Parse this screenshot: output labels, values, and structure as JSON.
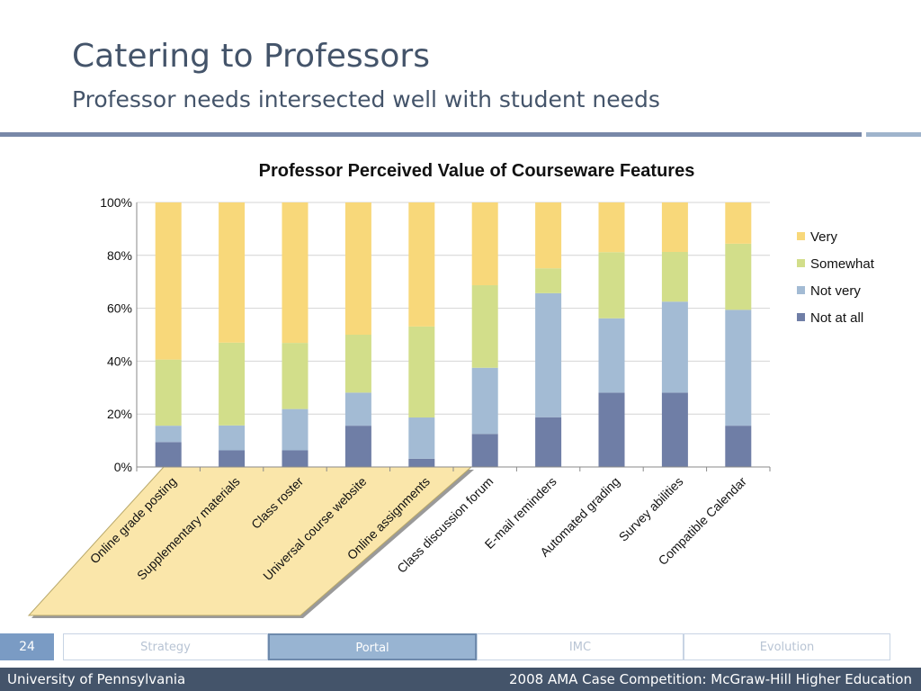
{
  "slide": {
    "title": "Catering to Professors",
    "subtitle": "Professor needs intersected well with student needs",
    "page_number": "24",
    "footer_left": "University of Pennsylvania",
    "footer_right": "2008 AMA Case Competition: McGraw-Hill Higher Education"
  },
  "nav": {
    "tabs": [
      {
        "label": "Strategy",
        "active": false
      },
      {
        "label": "Portal",
        "active": true
      },
      {
        "label": "IMC",
        "active": false
      },
      {
        "label": "Evolution",
        "active": false
      }
    ]
  },
  "colors": {
    "very": "#f8d87a",
    "somewhat": "#d2de8a",
    "not_very": "#a3bbd4",
    "not_at_all": "#6f7ea6",
    "highlight": "#fae6aa",
    "title_text": "#44546a"
  },
  "chart_data": {
    "type": "bar",
    "stacked": true,
    "title": "Professor Perceived Value of Courseware Features",
    "categories": [
      "Online grade posting",
      "Supplementary materials",
      "Class roster",
      "Universal course website",
      "Online assignments",
      "Class discussion forum",
      "E-mail reminders",
      "Automated grading",
      "Survey abilities",
      "Compatible Calendar"
    ],
    "series": [
      {
        "name": "Not at all",
        "values": [
          9.4,
          6.3,
          6.3,
          15.6,
          3.1,
          12.5,
          18.8,
          28.1,
          28.1,
          15.6
        ]
      },
      {
        "name": "Not very",
        "values": [
          6.2,
          9.4,
          15.6,
          12.5,
          15.6,
          25.0,
          46.9,
          28.1,
          34.4,
          43.8
        ]
      },
      {
        "name": "Somewhat",
        "values": [
          25.0,
          31.3,
          25.0,
          21.9,
          34.4,
          31.2,
          9.4,
          25.0,
          18.8,
          25.0
        ]
      },
      {
        "name": "Very",
        "values": [
          59.4,
          53.0,
          53.1,
          50.0,
          46.9,
          31.3,
          24.9,
          18.8,
          18.7,
          15.6
        ]
      }
    ],
    "ylim": [
      0,
      100
    ],
    "yticks": [
      "0%",
      "20%",
      "40%",
      "60%",
      "80%",
      "100%"
    ],
    "legend_order": [
      "Very",
      "Somewhat",
      "Not very",
      "Not at all"
    ],
    "legend_position": "right",
    "highlighted_categories": [
      0,
      1,
      2,
      3,
      4
    ]
  }
}
